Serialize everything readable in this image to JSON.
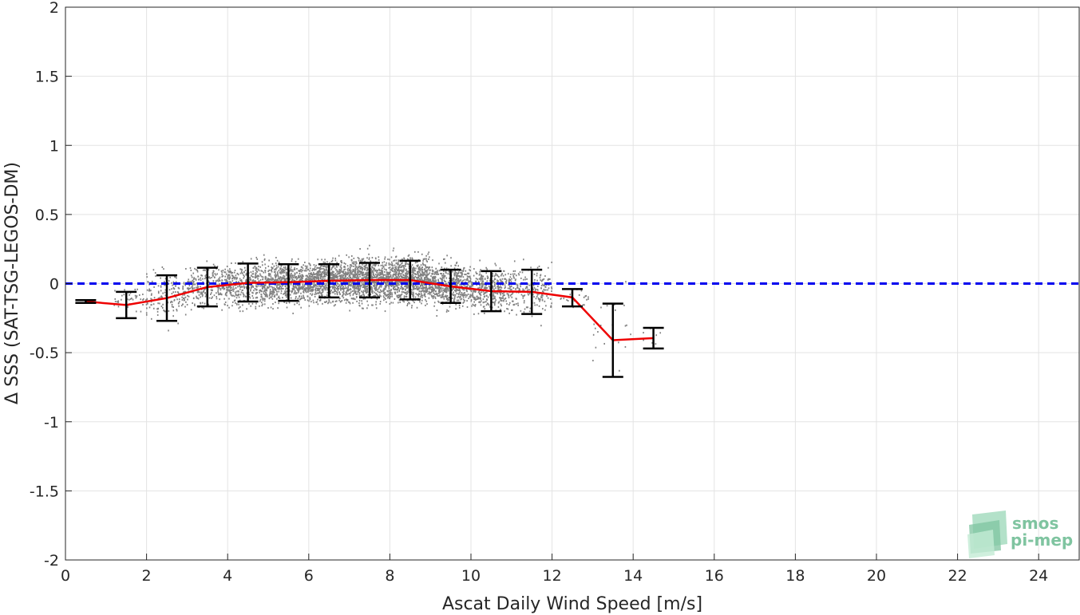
{
  "chart_data": {
    "type": "scatter",
    "title": "",
    "xlabel": "Ascat Daily Wind Speed [m/s]",
    "ylabel": "Δ SSS (SAT-TSG-LEGOS-DM)",
    "xlim": [
      0,
      25
    ],
    "ylim": [
      -2,
      2
    ],
    "xticks": [
      0,
      2,
      4,
      6,
      8,
      10,
      12,
      14,
      16,
      18,
      20,
      22,
      24
    ],
    "yticks": [
      2,
      1.5,
      1,
      0.5,
      0,
      -0.5,
      -1,
      -1.5,
      -2
    ],
    "xtick_labels": [
      "0",
      "2",
      "4",
      "6",
      "8",
      "10",
      "12",
      "14",
      "16",
      "18",
      "20",
      "22",
      "24"
    ],
    "ytick_labels": [
      "2",
      "1.5",
      "1",
      "0.5",
      "0",
      "-0.5",
      "-1",
      "-1.5",
      "-2"
    ],
    "grid": true,
    "reference_line": {
      "y": 0,
      "color": "#0000ee",
      "style": "dashed"
    },
    "scatter_color": "#808080",
    "mean_line_color": "#ee0000",
    "errorbar_color": "#000000",
    "binned_stats": {
      "x": [
        0.5,
        1.5,
        2.5,
        3.5,
        4.5,
        5.5,
        6.5,
        7.5,
        8.5,
        9.5,
        10.5,
        11.5,
        12.5,
        13.5,
        14.5
      ],
      "mean": [
        -0.13,
        -0.155,
        -0.105,
        -0.025,
        0.005,
        0.01,
        0.02,
        0.025,
        0.025,
        -0.02,
        -0.055,
        -0.06,
        -0.1,
        -0.41,
        -0.395
      ],
      "lower": [
        -0.14,
        -0.25,
        -0.27,
        -0.165,
        -0.13,
        -0.125,
        -0.1,
        -0.1,
        -0.115,
        -0.14,
        -0.2,
        -0.22,
        -0.165,
        -0.675,
        -0.47
      ],
      "upper": [
        -0.12,
        -0.06,
        0.06,
        0.115,
        0.145,
        0.14,
        0.14,
        0.15,
        0.165,
        0.1,
        0.09,
        0.1,
        -0.04,
        -0.145,
        -0.32
      ]
    },
    "scatter_bins": [
      {
        "x_range": [
          1.2,
          2.0
        ],
        "center": -0.12,
        "spread": 0.07,
        "n": 40
      },
      {
        "x_range": [
          2.0,
          3.0
        ],
        "center": -0.08,
        "spread": 0.12,
        "n": 160
      },
      {
        "x_range": [
          3.0,
          4.0
        ],
        "center": -0.02,
        "spread": 0.11,
        "n": 260
      },
      {
        "x_range": [
          4.0,
          5.0
        ],
        "center": 0.0,
        "spread": 0.11,
        "n": 420
      },
      {
        "x_range": [
          5.0,
          6.0
        ],
        "center": 0.01,
        "spread": 0.1,
        "n": 560
      },
      {
        "x_range": [
          6.0,
          7.0
        ],
        "center": 0.02,
        "spread": 0.1,
        "n": 700
      },
      {
        "x_range": [
          7.0,
          8.0
        ],
        "center": 0.03,
        "spread": 0.11,
        "n": 820
      },
      {
        "x_range": [
          8.0,
          9.0
        ],
        "center": 0.03,
        "spread": 0.11,
        "n": 760
      },
      {
        "x_range": [
          9.0,
          10.0
        ],
        "center": -0.01,
        "spread": 0.1,
        "n": 520
      },
      {
        "x_range": [
          10.0,
          11.0
        ],
        "center": -0.04,
        "spread": 0.11,
        "n": 380
      },
      {
        "x_range": [
          11.0,
          12.0
        ],
        "center": -0.05,
        "spread": 0.12,
        "n": 200
      },
      {
        "x_range": [
          12.2,
          12.9
        ],
        "center": -0.1,
        "spread": 0.05,
        "n": 20
      },
      {
        "x_range": [
          13.0,
          14.0
        ],
        "center": -0.35,
        "spread": 0.15,
        "n": 22
      },
      {
        "x_range": [
          14.2,
          14.8
        ],
        "center": -0.39,
        "spread": 0.05,
        "n": 8
      }
    ]
  },
  "logo": {
    "line1": "smos",
    "line2": "pi-mep"
  }
}
